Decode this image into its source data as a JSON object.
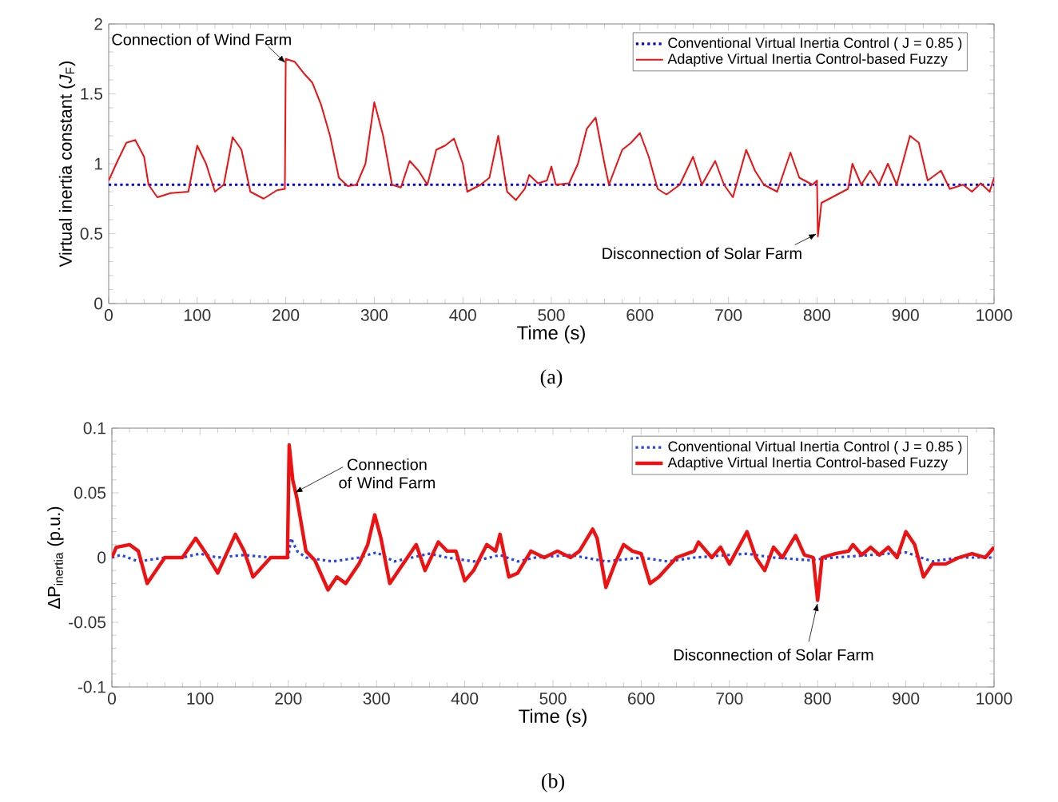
{
  "chart_data": [
    {
      "type": "line",
      "xlabel": "Time (s)",
      "ylabel": "Virtual inertia constant (*J*$_{F}$)",
      "xlim": [
        0,
        1000
      ],
      "ylim": [
        0,
        2
      ],
      "xticks": [
        0,
        100,
        200,
        300,
        400,
        500,
        600,
        700,
        800,
        900,
        1000
      ],
      "yticks": [
        0,
        0.5,
        1,
        1.5,
        2
      ],
      "legend": "top right",
      "series": [
        {
          "name": "Conventional Virtual Inertia Control ( J = 0.85 )",
          "color": "#0000dd",
          "line_style": "dotted",
          "x": [
            0,
            1000
          ],
          "values": [
            0.85,
            0.85
          ]
        },
        {
          "name": "Adaptive Virtual Inertia Control-based Fuzzy",
          "color": "#ee1111",
          "line_style": "solid",
          "x": [
            0,
            10,
            20,
            30,
            40,
            45,
            55,
            70,
            90,
            100,
            110,
            120,
            130,
            140,
            150,
            160,
            175,
            190,
            199,
            200,
            210,
            220,
            230,
            240,
            250,
            260,
            270,
            280,
            290,
            300,
            310,
            320,
            330,
            340,
            350,
            360,
            370,
            380,
            390,
            400,
            405,
            420,
            430,
            440,
            450,
            460,
            470,
            475,
            485,
            495,
            500,
            505,
            520,
            530,
            540,
            550,
            560,
            565,
            580,
            590,
            600,
            610,
            620,
            630,
            645,
            660,
            670,
            685,
            695,
            705,
            720,
            730,
            740,
            755,
            770,
            780,
            795,
            800,
            801,
            805,
            820,
            835,
            840,
            850,
            860,
            870,
            880,
            890,
            905,
            915,
            925,
            940,
            950,
            965,
            975,
            985,
            995,
            1000
          ],
          "values": [
            0.88,
            1.02,
            1.15,
            1.17,
            1.05,
            0.85,
            0.76,
            0.79,
            0.8,
            1.13,
            1.0,
            0.8,
            0.85,
            1.19,
            1.1,
            0.8,
            0.75,
            0.81,
            0.82,
            1.75,
            1.73,
            1.65,
            1.58,
            1.42,
            1.2,
            0.9,
            0.84,
            0.85,
            1.0,
            1.44,
            1.2,
            0.85,
            0.83,
            1.02,
            0.95,
            0.85,
            1.1,
            1.13,
            1.18,
            1.0,
            0.8,
            0.85,
            0.9,
            1.2,
            0.8,
            0.74,
            0.82,
            0.92,
            0.86,
            0.88,
            0.98,
            0.85,
            0.86,
            1.0,
            1.25,
            1.33,
            1.0,
            0.85,
            1.1,
            1.15,
            1.22,
            1.05,
            0.82,
            0.78,
            0.85,
            1.05,
            0.85,
            1.02,
            0.85,
            0.76,
            1.1,
            0.95,
            0.85,
            0.8,
            1.08,
            0.9,
            0.85,
            0.88,
            0.48,
            0.72,
            0.77,
            0.82,
            1.0,
            0.85,
            0.95,
            0.85,
            1.0,
            0.85,
            1.2,
            1.15,
            0.88,
            0.95,
            0.82,
            0.85,
            0.8,
            0.86,
            0.8,
            0.9
          ]
        }
      ],
      "annotations": [
        {
          "text": "Connection of Wind Farm",
          "x": 200,
          "y": 1.72
        },
        {
          "text": "Disconnection of Solar Farm",
          "x": 800,
          "y": 0.5
        },
        "(a)"
      ]
    },
    {
      "type": "line",
      "xlabel": "Time (s)",
      "ylabel": "ΔP$_{inertia}$ (p.u.)",
      "xlim": [
        0,
        1000
      ],
      "ylim": [
        -0.1,
        0.1
      ],
      "xticks": [
        0,
        100,
        200,
        300,
        400,
        500,
        600,
        700,
        800,
        900,
        1000
      ],
      "yticks": [
        -0.1,
        -0.05,
        0,
        0.05,
        0.1
      ],
      "legend": "top right",
      "series": [
        {
          "name": "Conventional Virtual Inertia Control ( J = 0.85 )",
          "color": "#2244ee",
          "line_style": "dotted",
          "x": [
            0,
            10,
            30,
            60,
            80,
            100,
            120,
            150,
            180,
            200,
            203,
            210,
            220,
            250,
            280,
            300,
            320,
            340,
            360,
            380,
            410,
            440,
            460,
            480,
            520,
            560,
            600,
            630,
            660,
            700,
            720,
            750,
            790,
            820,
            860,
            900,
            930,
            960,
            1000
          ],
          "values": [
            0,
            0.002,
            -0.003,
            0,
            0,
            0.003,
            0,
            0.002,
            0,
            0,
            0.015,
            0.005,
            0,
            -0.003,
            0,
            0.004,
            -0.003,
            0,
            0.003,
            0,
            -0.003,
            0.002,
            -0.003,
            0,
            0.002,
            -0.003,
            0,
            -0.003,
            0,
            0.002,
            0.003,
            0,
            -0.002,
            0,
            0.002,
            0.004,
            -0.003,
            0,
            0
          ]
        },
        {
          "name": "Adaptive Virtual Inertia Control-based Fuzzy",
          "color": "#ee1111",
          "line_style": "solid",
          "x": [
            0,
            5,
            20,
            30,
            40,
            50,
            60,
            80,
            95,
            105,
            120,
            140,
            150,
            160,
            180,
            195,
            199,
            201,
            205,
            210,
            220,
            230,
            245,
            255,
            265,
            280,
            290,
            298,
            305,
            315,
            330,
            345,
            355,
            370,
            380,
            390,
            400,
            410,
            425,
            435,
            440,
            450,
            460,
            475,
            490,
            505,
            520,
            530,
            545,
            550,
            560,
            570,
            580,
            590,
            600,
            610,
            620,
            640,
            660,
            665,
            680,
            690,
            700,
            720,
            730,
            740,
            750,
            760,
            775,
            785,
            795,
            800,
            805,
            820,
            835,
            840,
            850,
            860,
            870,
            880,
            890,
            900,
            910,
            920,
            930,
            945,
            960,
            975,
            990,
            1000
          ],
          "values": [
            0.0,
            0.008,
            0.01,
            0.005,
            -0.02,
            -0.01,
            0,
            0,
            0.015,
            0.005,
            -0.012,
            0.018,
            0.005,
            -0.015,
            0,
            0,
            0.0,
            0.087,
            0.06,
            0.045,
            0.005,
            -0.002,
            -0.025,
            -0.015,
            -0.02,
            -0.005,
            0.01,
            0.033,
            0.015,
            -0.02,
            -0.005,
            0.01,
            -0.01,
            0.012,
            0.005,
            0.005,
            -0.018,
            -0.01,
            0.01,
            0.005,
            0.018,
            -0.015,
            -0.012,
            0.005,
            0,
            0.005,
            0.0,
            0.005,
            0.022,
            0.015,
            -0.023,
            -0.005,
            0.01,
            0.005,
            0.003,
            -0.02,
            -0.015,
            0,
            0.005,
            0.012,
            0,
            0.008,
            -0.005,
            0.02,
            0.0,
            -0.01,
            0.008,
            0,
            0.017,
            0.002,
            0,
            -0.033,
            0,
            0.003,
            0.005,
            0.01,
            0.002,
            0.008,
            0.002,
            0.008,
            0,
            0.02,
            0.01,
            -0.015,
            -0.005,
            -0.005,
            0.0,
            0.003,
            0,
            0.008
          ]
        }
      ],
      "annotations": [
        {
          "text": "Connection of Wind Farm",
          "x": 207,
          "y": 0.05
        },
        {
          "text": "Disconnection of Solar Farm",
          "x": 800,
          "y": -0.035
        },
        "(b)"
      ]
    }
  ]
}
